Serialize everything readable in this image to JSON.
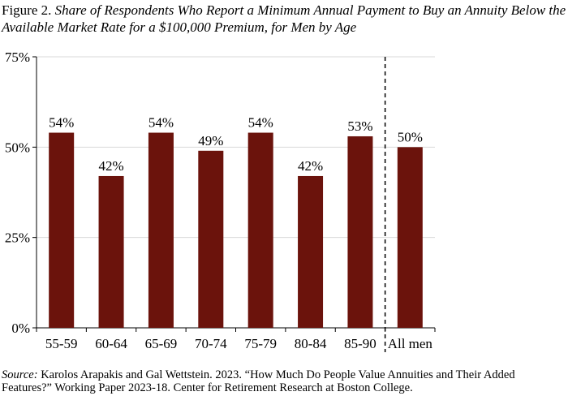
{
  "title": {
    "figure_label": "Figure 2.",
    "text": "Share of Respondents Who Report a Minimum Annual Payment to Buy an Annuity Below the Available Market Rate for a $100,000 Premium, for Men by Age"
  },
  "source": {
    "label": "Source:",
    "text": "Karolos Arapakis and Gal Wettstein. 2023. “How Much Do People Value Annuities and Their Added Features?” Working Paper 2023-18. Center for Retirement Research at Boston College."
  },
  "chart_data": {
    "type": "bar",
    "categories": [
      "55-59",
      "60-64",
      "65-69",
      "70-74",
      "75-79",
      "80-84",
      "85-90",
      "All men"
    ],
    "values": [
      54,
      42,
      54,
      49,
      54,
      42,
      53,
      50
    ],
    "data_labels": [
      "54%",
      "42%",
      "54%",
      "49%",
      "54%",
      "42%",
      "53%",
      "50%"
    ],
    "ylim": [
      0,
      75
    ],
    "yticks": [
      0,
      25,
      50,
      75
    ],
    "ytick_labels": [
      "0%",
      "25%",
      "50%",
      "75%"
    ],
    "grid": true,
    "separator_before_last": true,
    "bar_color": "#6b130c",
    "grid_color": "#d9d9d9"
  }
}
